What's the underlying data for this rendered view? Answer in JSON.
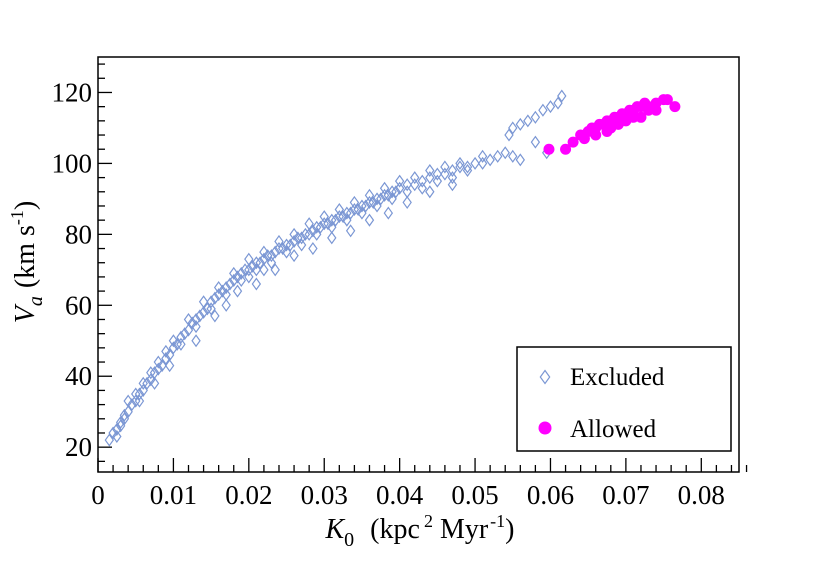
{
  "chart_data": {
    "type": "scatter",
    "title": "",
    "xlabel": {
      "symbol": "K",
      "subscript": "0",
      "unit_open": "(kpc",
      "unit_sup1": "2",
      "unit_mid": " Myr",
      "unit_sup2": "-1",
      "unit_close": ")"
    },
    "ylabel": {
      "symbol": "V",
      "subscript": "a",
      "unit_open": "(km s",
      "unit_sup": "-1",
      "unit_close": ")"
    },
    "xlim": [
      0,
      0.085
    ],
    "ylim": [
      13,
      130
    ],
    "xticks": [
      {
        "value": 0,
        "label": "0"
      },
      {
        "value": 0.01,
        "label": "0.01"
      },
      {
        "value": 0.02,
        "label": "0.02"
      },
      {
        "value": 0.03,
        "label": "0.03"
      },
      {
        "value": 0.04,
        "label": "0.04"
      },
      {
        "value": 0.05,
        "label": "0.05"
      },
      {
        "value": 0.06,
        "label": "0.06"
      },
      {
        "value": 0.07,
        "label": "0.07"
      },
      {
        "value": 0.08,
        "label": "0.08"
      }
    ],
    "yticks": [
      {
        "value": 20,
        "label": "20"
      },
      {
        "value": 40,
        "label": "40"
      },
      {
        "value": 60,
        "label": "60"
      },
      {
        "value": 80,
        "label": "80"
      },
      {
        "value": 100,
        "label": "100"
      },
      {
        "value": 120,
        "label": "120"
      }
    ],
    "grid": false,
    "legend_position": "bottom-right",
    "series": [
      {
        "name": "Excluded",
        "marker": "open-diamond",
        "color": "#7b97d4",
        "points": [
          [
            0.0015,
            22
          ],
          [
            0.002,
            24
          ],
          [
            0.0025,
            25
          ],
          [
            0.003,
            27
          ],
          [
            0.0035,
            29
          ],
          [
            0.004,
            30
          ],
          [
            0.0045,
            32
          ],
          [
            0.005,
            33
          ],
          [
            0.0055,
            35
          ],
          [
            0.006,
            36
          ],
          [
            0.0065,
            38
          ],
          [
            0.007,
            39
          ],
          [
            0.0075,
            41
          ],
          [
            0.008,
            42
          ],
          [
            0.0085,
            43
          ],
          [
            0.009,
            45
          ],
          [
            0.0095,
            46
          ],
          [
            0.01,
            48
          ],
          [
            0.0105,
            49
          ],
          [
            0.011,
            51
          ],
          [
            0.0115,
            52
          ],
          [
            0.012,
            53
          ],
          [
            0.0125,
            55
          ],
          [
            0.013,
            56
          ],
          [
            0.0135,
            57
          ],
          [
            0.014,
            58
          ],
          [
            0.0145,
            59
          ],
          [
            0.015,
            61
          ],
          [
            0.0155,
            62
          ],
          [
            0.016,
            63
          ],
          [
            0.0165,
            64
          ],
          [
            0.017,
            65
          ],
          [
            0.0175,
            66
          ],
          [
            0.018,
            67
          ],
          [
            0.0185,
            68
          ],
          [
            0.019,
            69
          ],
          [
            0.0195,
            70
          ],
          [
            0.02,
            70
          ],
          [
            0.0205,
            71
          ],
          [
            0.021,
            72
          ],
          [
            0.0215,
            72
          ],
          [
            0.022,
            73
          ],
          [
            0.0225,
            74
          ],
          [
            0.023,
            74
          ],
          [
            0.0235,
            75
          ],
          [
            0.024,
            76
          ],
          [
            0.0245,
            76
          ],
          [
            0.025,
            77
          ],
          [
            0.0255,
            77
          ],
          [
            0.026,
            78
          ],
          [
            0.0265,
            79
          ],
          [
            0.027,
            79
          ],
          [
            0.0275,
            80
          ],
          [
            0.028,
            80
          ],
          [
            0.0285,
            81
          ],
          [
            0.029,
            82
          ],
          [
            0.0295,
            82
          ],
          [
            0.03,
            83
          ],
          [
            0.0305,
            83
          ],
          [
            0.031,
            84
          ],
          [
            0.0315,
            84
          ],
          [
            0.032,
            85
          ],
          [
            0.0325,
            85
          ],
          [
            0.033,
            86
          ],
          [
            0.0335,
            86
          ],
          [
            0.034,
            87
          ],
          [
            0.0345,
            87
          ],
          [
            0.035,
            88
          ],
          [
            0.0355,
            88
          ],
          [
            0.036,
            89
          ],
          [
            0.0365,
            89
          ],
          [
            0.037,
            90
          ],
          [
            0.0375,
            90
          ],
          [
            0.038,
            91
          ],
          [
            0.0385,
            91
          ],
          [
            0.039,
            92
          ],
          [
            0.0395,
            92
          ],
          [
            0.04,
            93
          ],
          [
            0.041,
            94
          ],
          [
            0.042,
            94
          ],
          [
            0.043,
            95
          ],
          [
            0.044,
            96
          ],
          [
            0.045,
            97
          ],
          [
            0.046,
            97
          ],
          [
            0.047,
            98
          ],
          [
            0.048,
            99
          ],
          [
            0.049,
            99
          ],
          [
            0.05,
            100
          ],
          [
            0.051,
            100
          ],
          [
            0.052,
            101
          ],
          [
            0.053,
            102
          ],
          [
            0.054,
            103
          ],
          [
            0.055,
            102
          ],
          [
            0.056,
            101
          ],
          [
            0.0545,
            108
          ],
          [
            0.055,
            110
          ],
          [
            0.056,
            111
          ],
          [
            0.057,
            112
          ],
          [
            0.058,
            113
          ],
          [
            0.059,
            115
          ],
          [
            0.06,
            116
          ],
          [
            0.061,
            117
          ],
          [
            0.0615,
            119
          ],
          [
            0.0595,
            103
          ],
          [
            0.058,
            106
          ],
          [
            0.003,
            26
          ],
          [
            0.005,
            35
          ],
          [
            0.007,
            41
          ],
          [
            0.009,
            47
          ],
          [
            0.011,
            49
          ],
          [
            0.013,
            54
          ],
          [
            0.015,
            59
          ],
          [
            0.017,
            63
          ],
          [
            0.019,
            67
          ],
          [
            0.021,
            70
          ],
          [
            0.023,
            72
          ],
          [
            0.025,
            75
          ],
          [
            0.027,
            77
          ],
          [
            0.029,
            80
          ],
          [
            0.031,
            82
          ],
          [
            0.033,
            84
          ],
          [
            0.035,
            86
          ],
          [
            0.037,
            88
          ],
          [
            0.039,
            90
          ],
          [
            0.041,
            92
          ],
          [
            0.043,
            93
          ],
          [
            0.045,
            95
          ],
          [
            0.047,
            96
          ],
          [
            0.049,
            98
          ],
          [
            0.051,
            102
          ],
          [
            0.004,
            33
          ],
          [
            0.006,
            38
          ],
          [
            0.008,
            44
          ],
          [
            0.01,
            50
          ],
          [
            0.012,
            56
          ],
          [
            0.014,
            61
          ],
          [
            0.016,
            65
          ],
          [
            0.018,
            69
          ],
          [
            0.02,
            73
          ],
          [
            0.022,
            75
          ],
          [
            0.024,
            78
          ],
          [
            0.026,
            80
          ],
          [
            0.028,
            83
          ],
          [
            0.03,
            85
          ],
          [
            0.032,
            87
          ],
          [
            0.034,
            89
          ],
          [
            0.036,
            91
          ],
          [
            0.038,
            93
          ],
          [
            0.04,
            95
          ],
          [
            0.042,
            96
          ],
          [
            0.044,
            98
          ],
          [
            0.046,
            99
          ],
          [
            0.048,
            100
          ],
          [
            0.0155,
            57
          ],
          [
            0.0185,
            64
          ],
          [
            0.021,
            66
          ],
          [
            0.0235,
            70
          ],
          [
            0.026,
            74
          ],
          [
            0.0285,
            76
          ],
          [
            0.031,
            79
          ],
          [
            0.0335,
            81
          ],
          [
            0.036,
            84
          ],
          [
            0.0385,
            86
          ],
          [
            0.041,
            89
          ],
          [
            0.044,
            92
          ],
          [
            0.047,
            94
          ],
          [
            0.02,
            68
          ],
          [
            0.022,
            70
          ],
          [
            0.017,
            60
          ],
          [
            0.013,
            50
          ],
          [
            0.0095,
            43
          ],
          [
            0.0075,
            38
          ],
          [
            0.0055,
            33
          ],
          [
            0.0035,
            28
          ],
          [
            0.0025,
            23
          ]
        ]
      },
      {
        "name": "Allowed",
        "marker": "filled-circle",
        "color": "#ff00ff",
        "points": [
          [
            0.0598,
            104
          ],
          [
            0.062,
            104
          ],
          [
            0.063,
            106
          ],
          [
            0.064,
            108
          ],
          [
            0.065,
            109
          ],
          [
            0.0655,
            110
          ],
          [
            0.066,
            110
          ],
          [
            0.0665,
            111
          ],
          [
            0.067,
            111
          ],
          [
            0.0675,
            112
          ],
          [
            0.068,
            112
          ],
          [
            0.0685,
            113
          ],
          [
            0.069,
            113
          ],
          [
            0.0695,
            114
          ],
          [
            0.07,
            114
          ],
          [
            0.0705,
            115
          ],
          [
            0.071,
            115
          ],
          [
            0.0715,
            116
          ],
          [
            0.072,
            116
          ],
          [
            0.0725,
            117
          ],
          [
            0.073,
            116
          ],
          [
            0.074,
            117
          ],
          [
            0.075,
            118
          ],
          [
            0.0755,
            118
          ],
          [
            0.0765,
            116
          ],
          [
            0.066,
            108
          ],
          [
            0.068,
            110
          ],
          [
            0.07,
            112
          ],
          [
            0.072,
            113
          ],
          [
            0.069,
            111
          ],
          [
            0.071,
            113
          ],
          [
            0.073,
            115
          ],
          [
            0.0645,
            107
          ],
          [
            0.0675,
            109
          ],
          [
            0.074,
            115
          ]
        ]
      }
    ]
  }
}
